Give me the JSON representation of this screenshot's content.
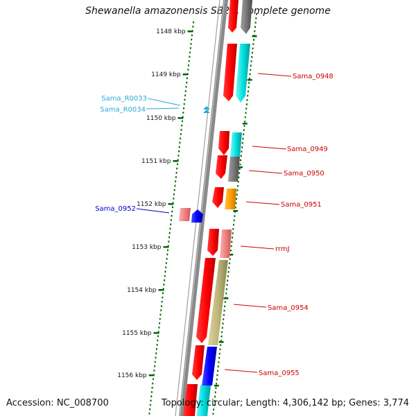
{
  "title": "Shewanella amazonensis SB2B, complete genome",
  "footer": {
    "accession": "Accession: NC_008700",
    "topology": "Topology: circular; Length: 4,306,142 bp; Genes: 3,774"
  },
  "colors": {
    "backbone": "#808080",
    "tick": "#006400",
    "label_red": "#cc0000",
    "label_cyan": "#29a9d6",
    "label_blue": "#0000cc"
  },
  "kbp_labels": [
    "1148 kbp",
    "1149 kbp",
    "1150 kbp",
    "1151 kbp",
    "1152 kbp",
    "1153 kbp",
    "1154 kbp",
    "1155 kbp",
    "1156 kbp"
  ],
  "gene_labels": [
    {
      "name": "sama-0948-label",
      "text": "Sama_0948",
      "color": "label_red"
    },
    {
      "name": "sama-0949-label",
      "text": "Sama_0949",
      "color": "label_red"
    },
    {
      "name": "sama-0950-label",
      "text": "Sama_0950",
      "color": "label_red"
    },
    {
      "name": "sama-0951-label",
      "text": "Sama_0951",
      "color": "label_red"
    },
    {
      "name": "rrmj-label",
      "text": "rrmJ",
      "color": "label_red"
    },
    {
      "name": "sama-0954-label",
      "text": "Sama_0954",
      "color": "label_red"
    },
    {
      "name": "sama-0955-label",
      "text": "Sama_0955",
      "color": "label_red"
    },
    {
      "name": "sama-r0033-label",
      "text": "Sama_R0033",
      "color": "label_cyan"
    },
    {
      "name": "sama-r0034-label",
      "text": "Sama_R0034",
      "color": "label_cyan"
    },
    {
      "name": "sama-0952-label",
      "text": "Sama_0952",
      "color": "label_blue"
    }
  ]
}
